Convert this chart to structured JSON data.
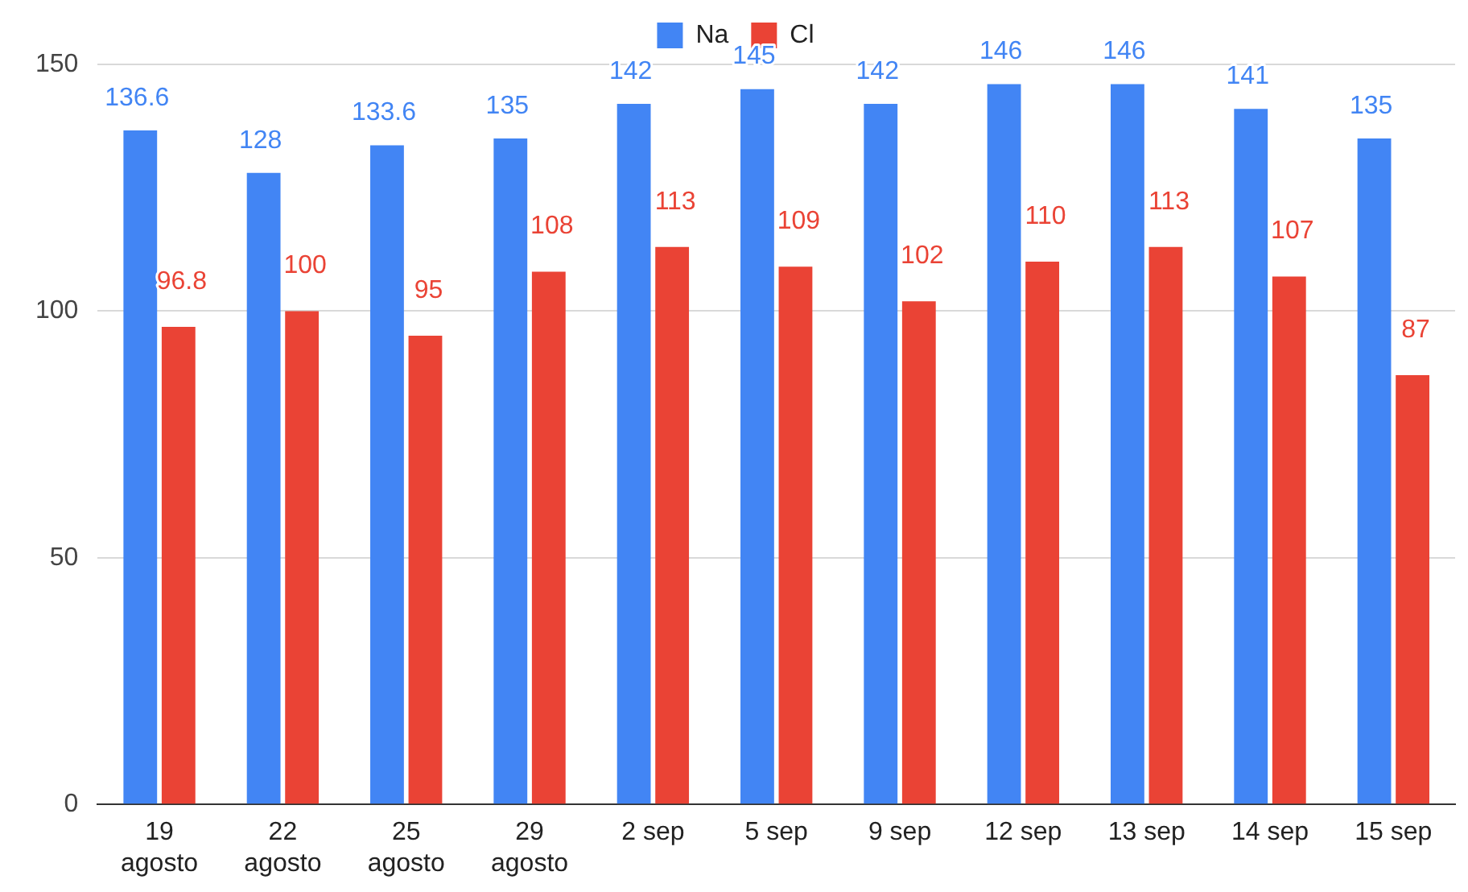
{
  "chart_data": {
    "type": "bar",
    "categories": [
      "19 agosto",
      "22 agosto",
      "25 agosto",
      "29 agosto",
      "2 sep",
      "5 sep",
      "9 sep",
      "12 sep",
      "13 sep",
      "14 sep",
      "15 sep"
    ],
    "series": [
      {
        "name": "Na",
        "color": "#4285f4",
        "values": [
          136.6,
          128,
          133.6,
          135,
          142,
          145,
          142,
          146,
          146,
          141,
          135
        ]
      },
      {
        "name": "Cl",
        "color": "#ea4335",
        "values": [
          96.8,
          100,
          95,
          108,
          113,
          109,
          102,
          110,
          113,
          107,
          87
        ]
      }
    ],
    "ylim": [
      0,
      150
    ],
    "yticks": [
      0,
      50,
      100,
      150
    ],
    "grid": "y",
    "legend": "top",
    "data_labels": true
  }
}
